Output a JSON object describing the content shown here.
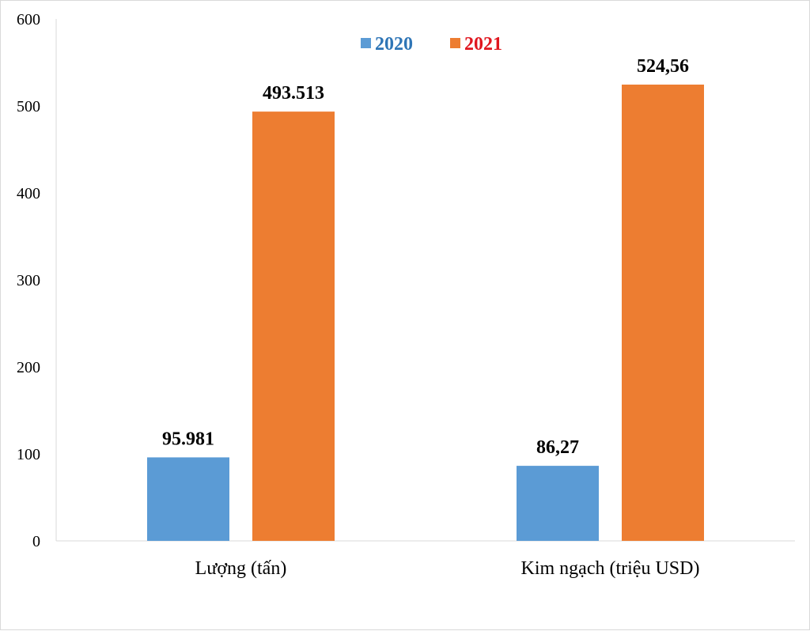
{
  "chart_data": {
    "type": "bar",
    "title": "",
    "xlabel": "",
    "ylabel": "",
    "ylim": [
      0,
      600
    ],
    "yticks": [
      "0",
      "100",
      "200",
      "300",
      "400",
      "500",
      "600"
    ],
    "categories": [
      "Lượng (tấn)",
      "Kim ngạch (triệu USD)"
    ],
    "series": [
      {
        "name": "2020",
        "values": [
          95.981,
          86.27
        ],
        "labels": [
          "95.981",
          "86,27"
        ],
        "color": "#5b9bd5",
        "legend_color": "#2e75b6"
      },
      {
        "name": "2021",
        "values": [
          493.513,
          524.56
        ],
        "labels": [
          "493.513",
          "524,56"
        ],
        "color": "#ed7d31",
        "legend_color": "#e0161f"
      }
    ],
    "legend_position": "top-center",
    "grid": false
  }
}
